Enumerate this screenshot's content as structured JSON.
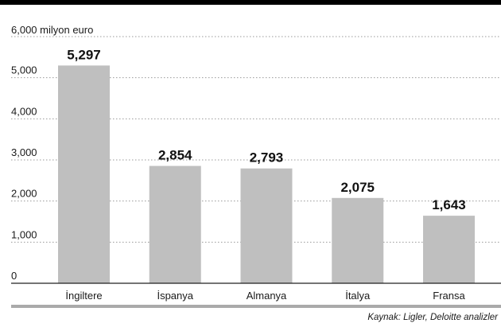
{
  "chart_data": {
    "type": "bar",
    "ylabel": "6,000 milyon euro",
    "categories": [
      "İngiltere",
      "İspanya",
      "Almanya",
      "İtalya",
      "Fransa"
    ],
    "values": [
      5297,
      2854,
      2793,
      2075,
      1643
    ],
    "value_labels": [
      "5,297",
      "2,854",
      "2,793",
      "2,075",
      "1,643"
    ],
    "ylim": [
      0,
      6000
    ],
    "y_ticks": [
      0,
      1000,
      2000,
      3000,
      4000,
      5000
    ],
    "y_tick_labels": [
      "0",
      "1,000",
      "2,000",
      "3,000",
      "4,000",
      "5,000"
    ],
    "grid": true,
    "source": "Kaynak: Ligler, Deloitte analizler",
    "colors": {
      "top_band": "#000000",
      "bar": "#bfbfbf",
      "grid": "#999999",
      "baseline": "#222222",
      "source_rule": "#aaaaaa",
      "text": "#1a1a1a"
    }
  }
}
